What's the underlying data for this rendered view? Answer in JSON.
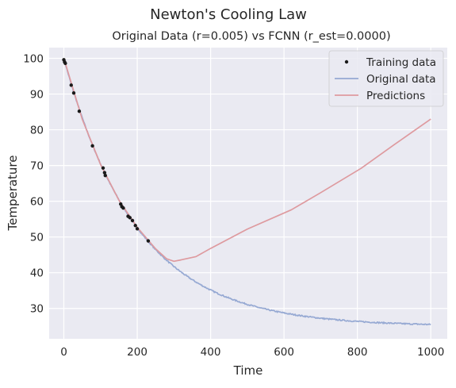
{
  "colors": {
    "axes_bg": "#eaeaf2",
    "grid": "#ffffff",
    "training": "#1a1a1a",
    "original": "#96a9d3",
    "predictions": "#de9a9f"
  },
  "chart_data": {
    "type": "line",
    "suptitle": "Newton's Cooling Law",
    "title": "Original Data (r=0.005) vs FCNN (r_est=0.0000)",
    "xlabel": "Time",
    "ylabel": "Temperature",
    "xlim": [
      -40,
      1045
    ],
    "ylim": [
      21.5,
      103
    ],
    "xticks": [
      0,
      200,
      400,
      600,
      800,
      1000
    ],
    "yticks": [
      30,
      40,
      50,
      60,
      70,
      80,
      90,
      100
    ],
    "xtick_labels": [
      "0",
      "200",
      "400",
      "600",
      "800",
      "1000"
    ],
    "ytick_labels": [
      "30",
      "40",
      "50",
      "60",
      "70",
      "80",
      "90",
      "100"
    ],
    "grid": true,
    "legend_position": "top-right",
    "legend": [
      {
        "label": "Training data",
        "key": "training"
      },
      {
        "label": "Original data",
        "key": "original"
      },
      {
        "label": "Predictions",
        "key": "predictions"
      }
    ],
    "original_model": {
      "ambient": 25,
      "initial": 100,
      "rate": 0.005,
      "t_start": 0,
      "t_end": 1000
    },
    "training_points": [
      {
        "x": 0,
        "y": 99.6
      },
      {
        "x": 2,
        "y": 99.0
      },
      {
        "x": 4,
        "y": 98.6
      },
      {
        "x": 20,
        "y": 92.5
      },
      {
        "x": 27,
        "y": 90.3
      },
      {
        "x": 42,
        "y": 85.2
      },
      {
        "x": 78,
        "y": 75.5
      },
      {
        "x": 107,
        "y": 69.3
      },
      {
        "x": 111,
        "y": 68.0
      },
      {
        "x": 113,
        "y": 67.2
      },
      {
        "x": 155,
        "y": 59.2
      },
      {
        "x": 158,
        "y": 58.5
      },
      {
        "x": 162,
        "y": 58.1
      },
      {
        "x": 175,
        "y": 55.8
      },
      {
        "x": 180,
        "y": 55.4
      },
      {
        "x": 187,
        "y": 54.6
      },
      {
        "x": 195,
        "y": 53.2
      },
      {
        "x": 200,
        "y": 52.3
      },
      {
        "x": 230,
        "y": 48.9
      }
    ],
    "predictions": [
      {
        "x": 0,
        "y": 100.0
      },
      {
        "x": 50,
        "y": 83.0
      },
      {
        "x": 100,
        "y": 70.3
      },
      {
        "x": 150,
        "y": 60.3
      },
      {
        "x": 200,
        "y": 52.7
      },
      {
        "x": 250,
        "y": 46.7
      },
      {
        "x": 280,
        "y": 43.9
      },
      {
        "x": 300,
        "y": 43.2
      },
      {
        "x": 320,
        "y": 43.6
      },
      {
        "x": 360,
        "y": 44.5
      },
      {
        "x": 400,
        "y": 46.8
      },
      {
        "x": 500,
        "y": 52.2
      },
      {
        "x": 620,
        "y": 57.6
      },
      {
        "x": 700,
        "y": 62.4
      },
      {
        "x": 810,
        "y": 69.2
      },
      {
        "x": 900,
        "y": 75.8
      },
      {
        "x": 1000,
        "y": 83.0
      }
    ]
  }
}
